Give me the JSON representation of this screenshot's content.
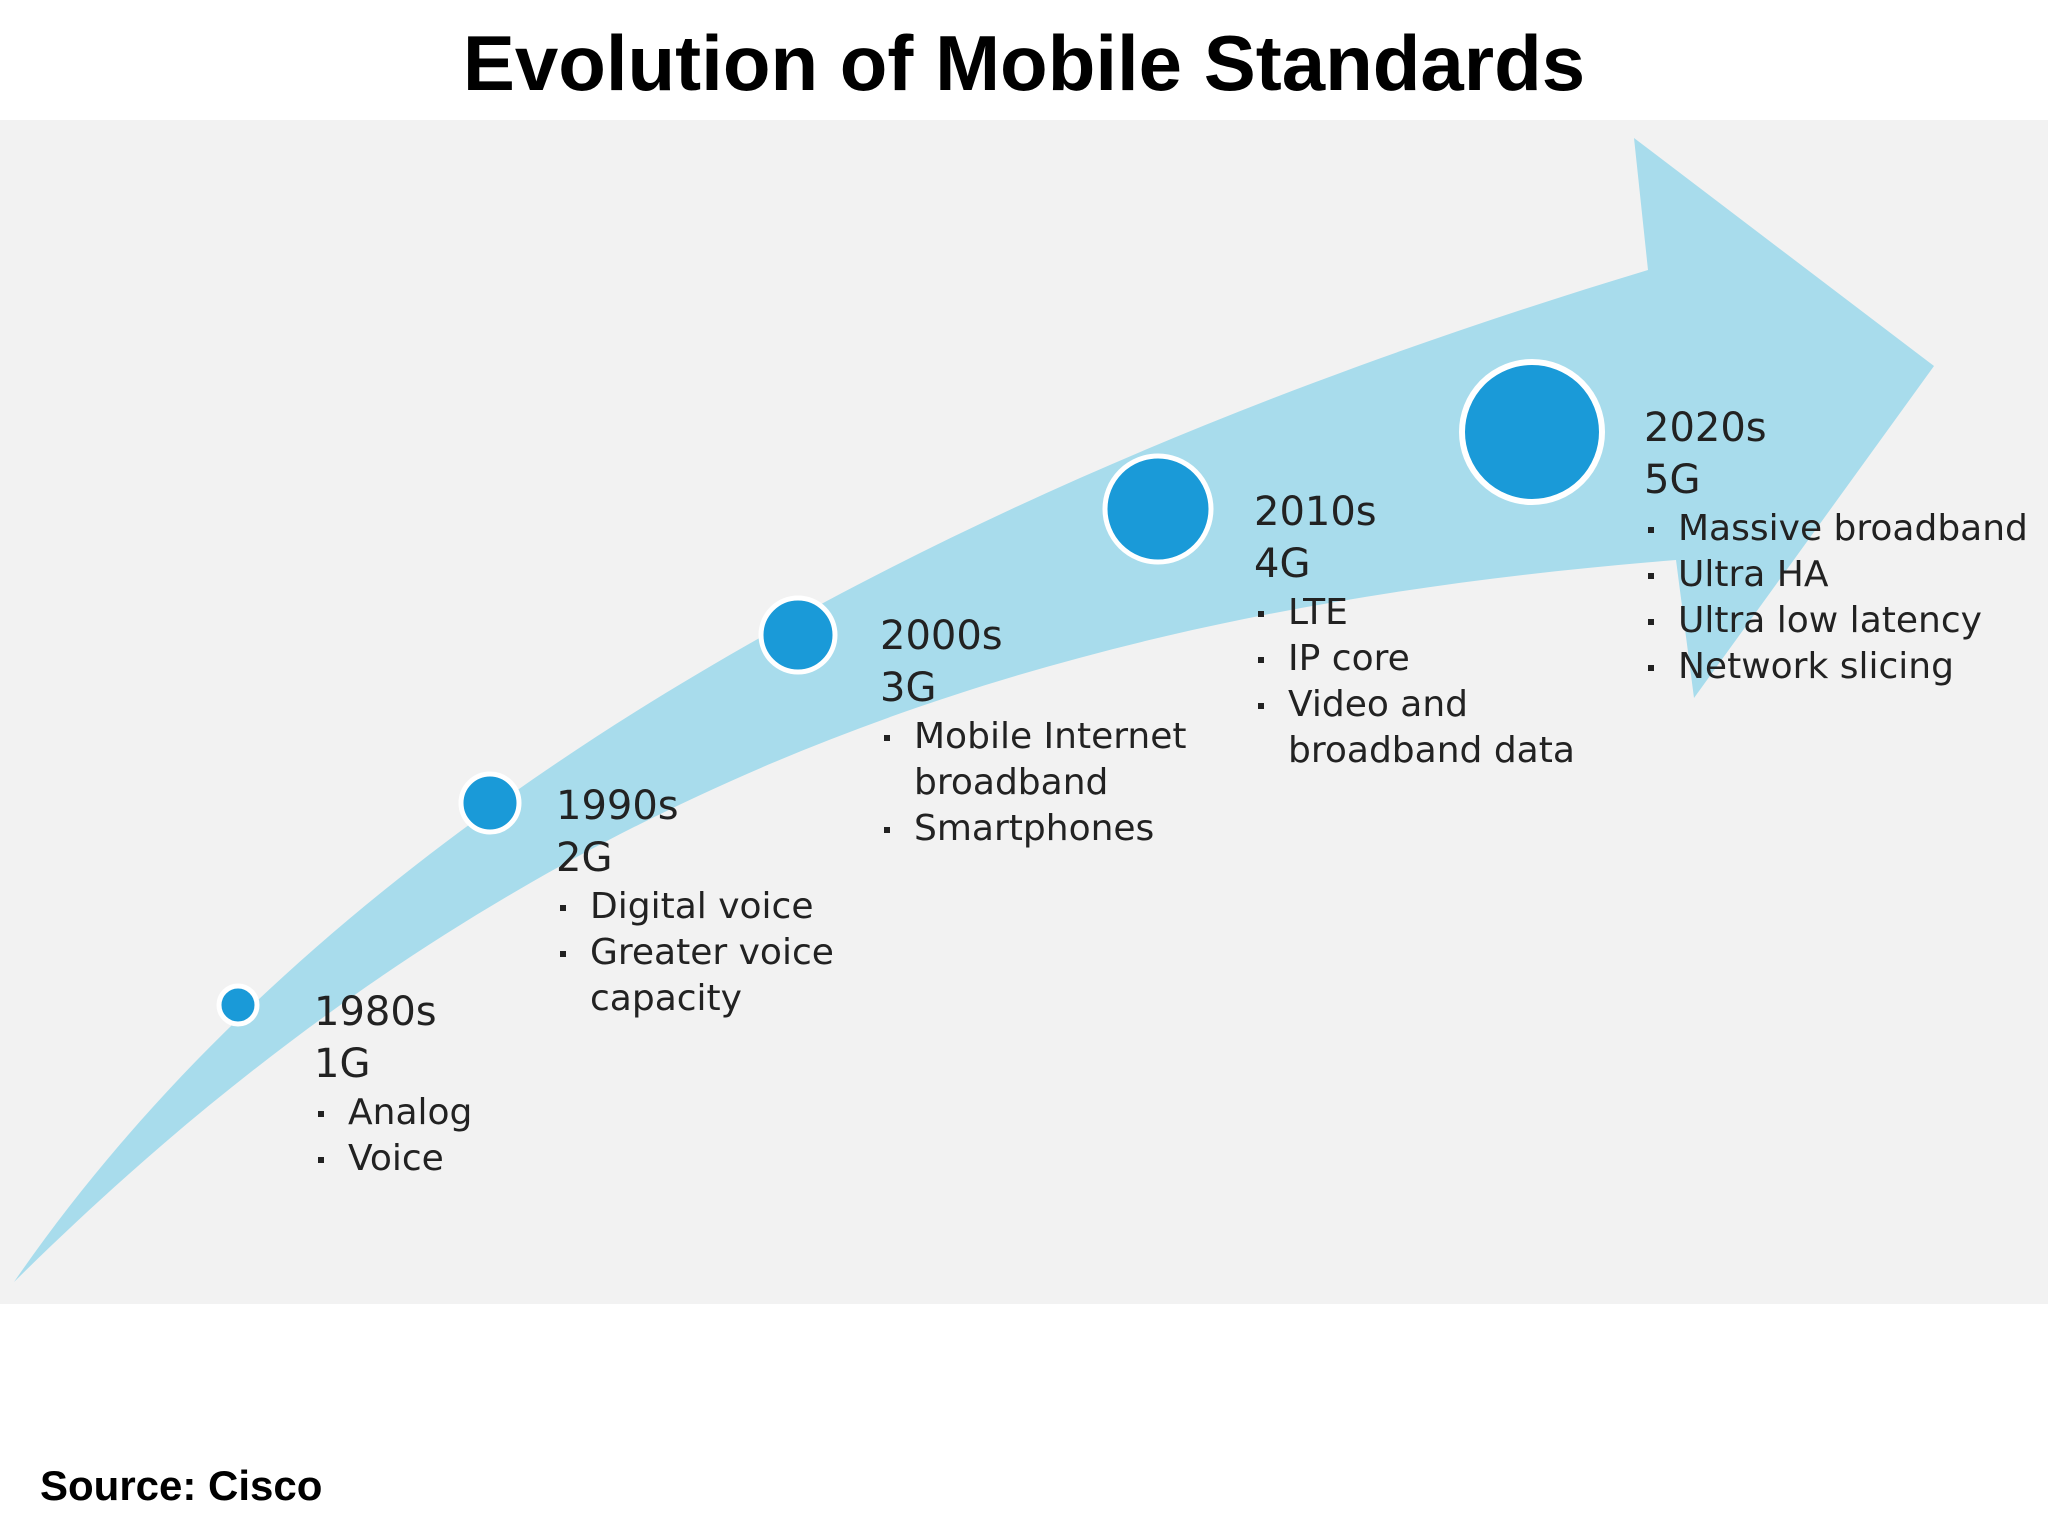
{
  "title": "Evolution of Mobile Standards",
  "source": "Source: Cisco",
  "colors": {
    "panel": "#f2f2f2",
    "arrow": "#a8dcec",
    "node": "#1a9ad8",
    "node_ring": "#ffffff"
  },
  "milestones": [
    {
      "era": "1980s",
      "generation": "1G",
      "features": [
        "Analog",
        "Voice"
      ]
    },
    {
      "era": "1990s",
      "generation": "2G",
      "features": [
        "Digital voice",
        "Greater voice capacity"
      ]
    },
    {
      "era": "2000s",
      "generation": "3G",
      "features": [
        "Mobile Internet broadband",
        "Smartphones"
      ]
    },
    {
      "era": "2010s",
      "generation": "4G",
      "features": [
        "LTE",
        "IP core",
        "Video and broadband data"
      ]
    },
    {
      "era": "2020s",
      "generation": "5G",
      "features": [
        "Massive broadband",
        "Ultra HA",
        "Ultra low latency",
        "Network slicing"
      ]
    }
  ]
}
